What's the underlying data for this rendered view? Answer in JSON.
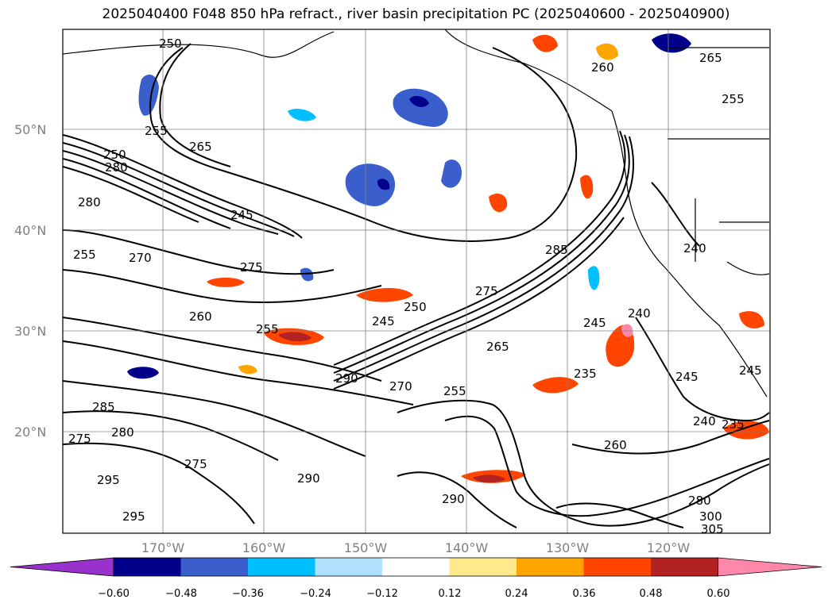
{
  "title": "2025040400 F048 850 hPa refract., river basin precipitation PC (2025040600 - 2025040900)",
  "lat_labels": [
    "50°N",
    "40°N",
    "30°N",
    "20°N"
  ],
  "lon_labels": [
    "170°W",
    "160°W",
    "150°W",
    "140°W",
    "130°W",
    "120°W"
  ],
  "contour_labels": [
    "250",
    "255",
    "265",
    "250",
    "280",
    "280",
    "245",
    "255",
    "270",
    "275",
    "260",
    "255",
    "245",
    "250",
    "290",
    "270",
    "255",
    "265",
    "285",
    "275",
    "245",
    "240",
    "235",
    "245",
    "240",
    "235",
    "260",
    "280",
    "300",
    "305",
    "290",
    "290",
    "295",
    "295",
    "285",
    "280",
    "275",
    "275",
    "240",
    "255",
    "265",
    "260",
    "245"
  ],
  "colorbar": {
    "ticks": [
      "−0.60",
      "−0.48",
      "−0.36",
      "−0.24",
      "−0.12",
      "0.12",
      "0.24",
      "0.36",
      "0.48",
      "0.60"
    ],
    "colors": [
      "#9932cc",
      "#00008b",
      "#3a5fcd",
      "#00bfff",
      "#b0e2ff",
      "#ffffff",
      "#ffe98a",
      "#ffa500",
      "#ff4500",
      "#b22222",
      "#ff88aa"
    ]
  }
}
